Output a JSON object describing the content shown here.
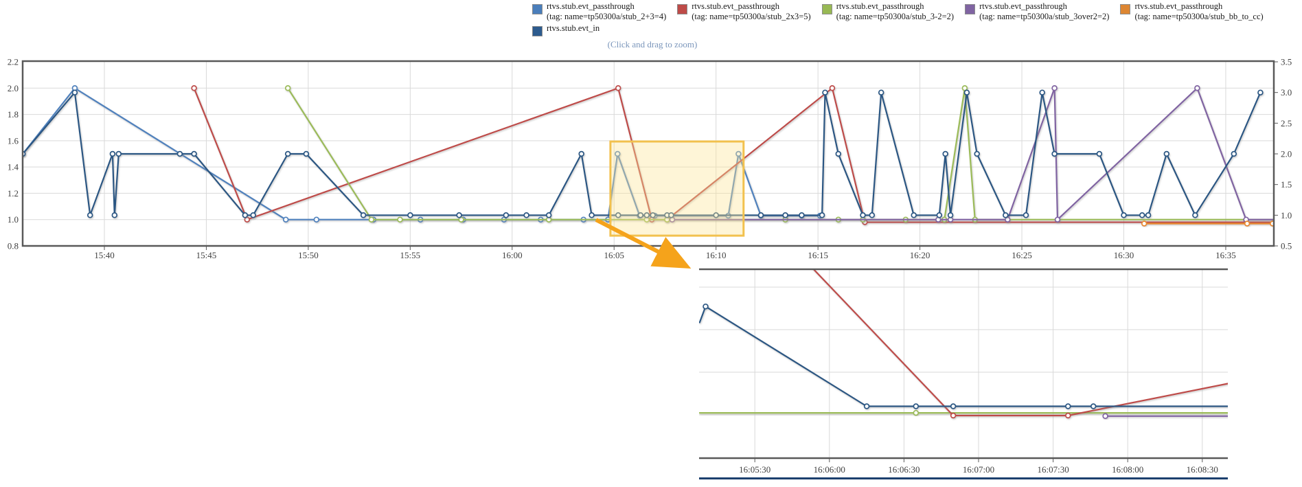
{
  "hint": "(Click and drag to zoom)",
  "legend": {
    "rows": [
      [
        {
          "label": "rtvs.stub.evt_passthrough",
          "tag": "(tag: name=tp50300a/stub_2+3=4)",
          "color": "#4A7EBB"
        },
        {
          "label": "rtvs.stub.evt_passthrough",
          "tag": "(tag: name=tp50300a/stub_2x3=5)",
          "color": "#BE4B48"
        },
        {
          "label": "rtvs.stub.evt_passthrough",
          "tag": "(tag: name=tp50300a/stub_3-2=2)",
          "color": "#98B954"
        },
        {
          "label": "rtvs.stub.evt_passthrough",
          "tag": "(tag: name=tp50300a/stub_3over2=2)",
          "color": "#8064A2"
        },
        {
          "label": "rtvs.stub.evt_passthrough",
          "tag": "(tag: name=tp50300a/stub_bb_to_cc)",
          "color": "#DD8632"
        }
      ],
      [
        {
          "label": "rtvs.stub.evt_in",
          "tag": "",
          "color": "#2D5B8E"
        }
      ]
    ]
  },
  "colors": {
    "grid": "#D9D9D9",
    "border": "#595959",
    "tick_text": "#404040",
    "next_chart_line": "#1C3F6E"
  },
  "annotations": {
    "highlight_box": {
      "t0": 64.82,
      "t1": 71.35,
      "v0": 0.878,
      "v1": 1.594,
      "stroke": "#F2C14E",
      "fill": "rgba(252,228,150,0.38)"
    },
    "arrow": {
      "color": "#F5A31B"
    }
  },
  "chart_data": [
    {
      "id": "main",
      "type": "line",
      "title": "",
      "xlabel": "",
      "ylabel_left": "",
      "ylabel_right": "",
      "grid": true,
      "legend_position": "top",
      "xlim_minutes_after_15h": [
        35.99,
        97.36
      ],
      "x_ticks": [
        {
          "t": 40,
          "label": "15:40"
        },
        {
          "t": 45,
          "label": "15:45"
        },
        {
          "t": 50,
          "label": "15:50"
        },
        {
          "t": 55,
          "label": "15:55"
        },
        {
          "t": 60,
          "label": "16:00"
        },
        {
          "t": 65,
          "label": "16:05"
        },
        {
          "t": 70,
          "label": "16:10"
        },
        {
          "t": 75,
          "label": "16:15"
        },
        {
          "t": 80,
          "label": "16:20"
        },
        {
          "t": 85,
          "label": "16:25"
        },
        {
          "t": 90,
          "label": "16:30"
        },
        {
          "t": 95,
          "label": "16:35"
        }
      ],
      "left_axis": {
        "lim": [
          0.8,
          2.2
        ],
        "ticks": [
          {
            "v": 2.2,
            "label": "2.2"
          },
          {
            "v": 2.0,
            "label": "2.0"
          },
          {
            "v": 1.8,
            "label": "1.8"
          },
          {
            "v": 1.6,
            "label": "1.6"
          },
          {
            "v": 1.4,
            "label": "1.4"
          },
          {
            "v": 1.2,
            "label": "1.2"
          },
          {
            "v": 1.0,
            "label": "1.0"
          },
          {
            "v": 0.8,
            "label": "0.8"
          }
        ]
      },
      "right_axis": {
        "lim": [
          0.5,
          3.5
        ],
        "ticks": [
          {
            "v": 3.5,
            "label": "3.5"
          },
          {
            "v": 3.0,
            "label": "3.0"
          },
          {
            "v": 2.5,
            "label": "2.5"
          },
          {
            "v": 2.0,
            "label": "2.0"
          },
          {
            "v": 1.5,
            "label": "1.5"
          },
          {
            "v": 1.0,
            "label": "1.0"
          },
          {
            "v": 0.5,
            "label": "0.5"
          }
        ]
      },
      "h_gridline_values_left": [
        2.0,
        1.8,
        1.6,
        1.4,
        1.2,
        1.0
      ],
      "series": [
        {
          "name": "rtvs.stub.evt_passthrough (tag: name=tp50300a/stub_2+3=4)",
          "color": "#4F81BD",
          "axis": "left",
          "points": [
            [
              36.0,
              1.5
            ],
            [
              38.55,
              2.0
            ],
            [
              48.9,
              1.0
            ],
            [
              50.4,
              1.0
            ],
            [
              53.2,
              1.0
            ],
            [
              55.5,
              1.0
            ],
            [
              57.6,
              1.0
            ],
            [
              59.6,
              1.0
            ],
            [
              61.4,
              1.0
            ],
            [
              63.5,
              1.0
            ],
            [
              64.7,
              1.0
            ],
            [
              65.17,
              1.5
            ],
            [
              66.25,
              1.03
            ],
            [
              67.0,
              1.03
            ],
            [
              67.8,
              1.03
            ],
            [
              70.6,
              1.03
            ],
            [
              71.1,
              1.5
            ],
            [
              72.2,
              1.03
            ],
            [
              73.4,
              1.03
            ],
            [
              74.2,
              1.03
            ],
            [
              75.1,
              1.03
            ]
          ]
        },
        {
          "name": "rtvs.stub.evt_passthrough (tag: name=tp50300a/stub_2x3=5)",
          "color": "#BE4B48",
          "axis": "left",
          "points": [
            [
              44.4,
              2.0
            ],
            [
              47.0,
              1.0
            ],
            [
              65.2,
              2.0
            ],
            [
              66.85,
              1.0
            ],
            [
              67.6,
              1.0
            ],
            [
              75.7,
              2.0
            ],
            [
              77.3,
              0.98
            ],
            [
              97.3,
              0.98,
              0
            ]
          ]
        },
        {
          "name": "rtvs.stub.evt_passthrough (tag: name=tp50300a/stub_3-2=2)",
          "color": "#9BBB59",
          "axis": "left",
          "points": [
            [
              49.0,
              2.0
            ],
            [
              53.1,
              1.0
            ],
            [
              54.5,
              1.0
            ],
            [
              57.5,
              1.0
            ],
            [
              61.8,
              1.0
            ],
            [
              66.6,
              1.0
            ],
            [
              67.6,
              1.0
            ],
            [
              73.4,
              1.0
            ],
            [
              76.0,
              1.0
            ],
            [
              77.2,
              1.0
            ],
            [
              79.3,
              1.0
            ],
            [
              81.2,
              1.0
            ],
            [
              82.2,
              2.0
            ],
            [
              82.7,
              1.0
            ],
            [
              97.3,
              1.0,
              0
            ]
          ]
        },
        {
          "name": "rtvs.stub.evt_passthrough (tag: name=tp50300a/stub_3over2=2)",
          "color": "#8064A2",
          "axis": "left",
          "points": [
            [
              67.85,
              1.0
            ],
            [
              80.9,
              1.0
            ],
            [
              81.5,
              1.0
            ],
            [
              84.3,
              1.0
            ],
            [
              86.6,
              2.0
            ],
            [
              86.75,
              1.0
            ],
            [
              93.6,
              2.0
            ],
            [
              96.0,
              1.0
            ],
            [
              97.3,
              1.0,
              0
            ]
          ]
        },
        {
          "name": "rtvs.stub.evt_passthrough (tag: name=tp50300a/stub_bb_to_cc)",
          "color": "#E8872F",
          "axis": "left",
          "points": [
            [
              91.0,
              0.97
            ],
            [
              96.05,
              0.97
            ],
            [
              97.3,
              0.97
            ]
          ]
        },
        {
          "name": "rtvs.stub.evt_in",
          "color": "#2A5783",
          "axis": "right",
          "points": [
            [
              36.0,
              2.0
            ],
            [
              38.55,
              3.0
            ],
            [
              39.3,
              1.0
            ],
            [
              40.4,
              2.0
            ],
            [
              40.5,
              1.0
            ],
            [
              40.7,
              2.0
            ],
            [
              43.7,
              2.0
            ],
            [
              44.4,
              2.0
            ],
            [
              46.9,
              1.0
            ],
            [
              47.3,
              1.0
            ],
            [
              49.0,
              2.0
            ],
            [
              49.9,
              2.0
            ],
            [
              52.7,
              1.0
            ],
            [
              55.0,
              1.0
            ],
            [
              57.4,
              1.0
            ],
            [
              59.7,
              1.0
            ],
            [
              60.7,
              1.0
            ],
            [
              61.8,
              1.0
            ],
            [
              63.4,
              2.0
            ],
            [
              63.9,
              1.0
            ],
            [
              65.2,
              1.0
            ],
            [
              66.3,
              1.0
            ],
            [
              66.6,
              1.0
            ],
            [
              66.9,
              1.0
            ],
            [
              67.6,
              1.0
            ],
            [
              67.8,
              1.0
            ],
            [
              70.0,
              1.0
            ],
            [
              72.2,
              1.0
            ],
            [
              73.4,
              1.0
            ],
            [
              74.2,
              1.0
            ],
            [
              75.2,
              1.0
            ],
            [
              75.35,
              3.0
            ],
            [
              76.0,
              2.0
            ],
            [
              77.2,
              1.0
            ],
            [
              77.65,
              1.0
            ],
            [
              78.1,
              3.0
            ],
            [
              79.7,
              1.0
            ],
            [
              80.95,
              1.0
            ],
            [
              81.25,
              2.0
            ],
            [
              81.5,
              1.0
            ],
            [
              82.3,
              3.0
            ],
            [
              82.8,
              2.0
            ],
            [
              84.2,
              1.0
            ],
            [
              85.2,
              1.0
            ],
            [
              86.0,
              3.0
            ],
            [
              86.6,
              2.0
            ],
            [
              88.8,
              2.0
            ],
            [
              90.0,
              1.0
            ],
            [
              90.9,
              1.0
            ],
            [
              91.2,
              1.0
            ],
            [
              92.1,
              2.0
            ],
            [
              93.5,
              1.0
            ],
            [
              95.4,
              2.0
            ],
            [
              96.7,
              3.0
            ]
          ]
        }
      ]
    },
    {
      "id": "inset-zoom",
      "type": "line",
      "title": "",
      "grid": true,
      "xlim_minutes_after_15h": [
        65.13,
        68.67
      ],
      "ylim": [
        0.89,
        1.6
      ],
      "x_ticks": [
        {
          "t": 65.5,
          "label": "16:05:30"
        },
        {
          "t": 66.0,
          "label": "16:06:00"
        },
        {
          "t": 66.5,
          "label": "16:06:30"
        },
        {
          "t": 67.0,
          "label": "16:07:00"
        },
        {
          "t": 67.5,
          "label": "16:07:30"
        },
        {
          "t": 68.0,
          "label": "16:08:00"
        },
        {
          "t": 68.5,
          "label": "16:08:30"
        }
      ],
      "h_gridline_values": [
        1.533,
        1.373,
        1.213,
        1.053
      ],
      "series": [
        {
          "name": "rtvs.stub.evt_passthrough (tag: name=tp50300a/stub_3-2=2)",
          "color": "#9BBB59",
          "points": [
            [
              65.13,
              1.06,
              0
            ],
            [
              66.58,
              1.06
            ],
            [
              68.67,
              1.06,
              0
            ]
          ]
        },
        {
          "name": "rtvs.stub.evt_passthrough (tag: name=tp50300a/stub_2x3=5)",
          "color": "#BE4B48",
          "points": [
            [
              65.86,
              1.62,
              0
            ],
            [
              66.83,
              1.05
            ],
            [
              67.6,
              1.05
            ],
            [
              68.67,
              1.17,
              0
            ]
          ]
        },
        {
          "name": "rtvs.stub.evt_passthrough (tag: name=tp50300a/stub_3over2=2)",
          "color": "#8064A2",
          "points": [
            [
              67.85,
              1.048
            ],
            [
              68.67,
              1.048,
              0
            ]
          ]
        },
        {
          "name": "rtvs.stub.evt_in",
          "color": "#2A5783",
          "points": [
            [
              65.13,
              1.4,
              0
            ],
            [
              65.17,
              1.46
            ],
            [
              66.25,
              1.085
            ],
            [
              66.58,
              1.085
            ],
            [
              66.83,
              1.085
            ],
            [
              67.6,
              1.085
            ],
            [
              67.77,
              1.085
            ],
            [
              68.67,
              1.085,
              0
            ]
          ]
        }
      ]
    }
  ]
}
